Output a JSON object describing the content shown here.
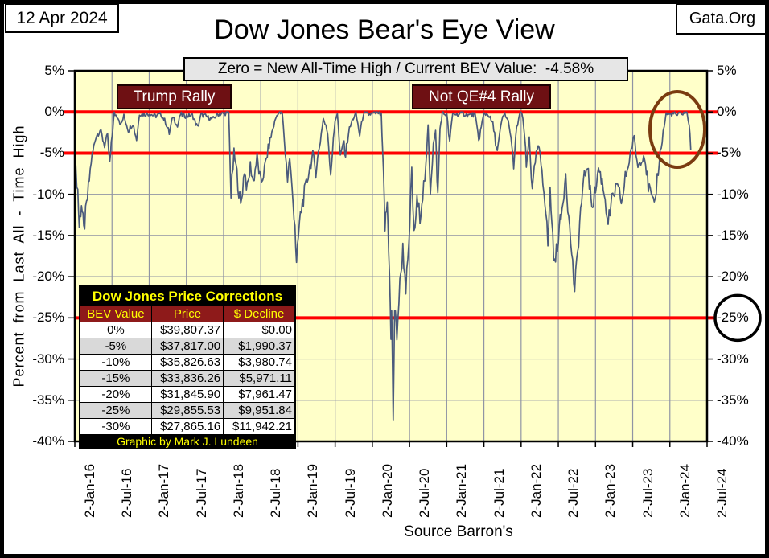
{
  "header": {
    "date_box": "12 Apr 2024",
    "brand_box": "Gata.Org",
    "title": "Dow Jones Bear's Eye View",
    "subtitle": "Zero = New All-Time High / Current BEV Value:  -4.58%"
  },
  "chart_data": {
    "type": "line",
    "title": "Dow Jones Bear's Eye View",
    "ylabel": "Percent from Last All - Time High",
    "source": "Source Barron's",
    "plot_bg": "#ffffc9",
    "grid_color": "#9094a4",
    "line_color": "#4a5a7c",
    "reference_line_color": "#ff0000",
    "current_bev": "-4.58%",
    "ylim": [
      -40,
      5
    ],
    "y_ticks": [
      5,
      0,
      -5,
      -10,
      -15,
      -20,
      -25,
      -30,
      -35,
      -40
    ],
    "y_tick_labels": [
      "5%",
      "0%",
      "-5%",
      "-10%",
      "-15%",
      "-20%",
      "-25%",
      "-30%",
      "-35%",
      "-40%"
    ],
    "x_tick_labels": [
      "2-Jan-16",
      "2-Jul-16",
      "2-Jan-17",
      "2-Jul-17",
      "2-Jan-18",
      "2-Jul-18",
      "2-Jan-19",
      "2-Jul-19",
      "2-Jan-20",
      "2-Jul-20",
      "2-Jan-21",
      "2-Jul-21",
      "2-Jan-22",
      "2-Jul-22",
      "2-Jan-23",
      "2-Jul-23",
      "2-Jan-24",
      "2-Jul-24"
    ],
    "x_span_years": 8.5,
    "reference_lines": [
      0,
      -5,
      -25
    ],
    "annotations": [
      {
        "type": "box-label",
        "text": "Trump Rally"
      },
      {
        "type": "box-label",
        "text": "Not QE#4 Rally"
      },
      {
        "type": "ellipse",
        "meaning": "current-rally-highlight",
        "color": "#7a3b10"
      },
      {
        "type": "circle",
        "meaning": "-25%-level-highlight",
        "color": "#000000"
      }
    ],
    "series": [
      {
        "name": "Dow Jones BEV (% from last all-time high)",
        "points": [
          [
            0,
            -6
          ],
          [
            0.04,
            -9.5
          ],
          [
            0.06,
            -13.9
          ],
          [
            0.09,
            -11
          ],
          [
            0.12,
            -14.5
          ],
          [
            0.17,
            -10.5
          ],
          [
            0.22,
            -6
          ],
          [
            0.28,
            -3
          ],
          [
            0.34,
            -2.2
          ],
          [
            0.4,
            -4
          ],
          [
            0.44,
            -3
          ],
          [
            0.47,
            -6.4
          ],
          [
            0.5,
            -3
          ],
          [
            0.53,
            -0.2
          ],
          [
            0.58,
            -0.6
          ],
          [
            0.62,
            -1.6
          ],
          [
            0.66,
            -0.5
          ],
          [
            0.72,
            -2.2
          ],
          [
            0.78,
            -1.4
          ],
          [
            0.83,
            -3.3
          ],
          [
            0.87,
            -0.2
          ],
          [
            0.93,
            -0.3
          ],
          [
            1,
            -0.2
          ],
          [
            1.08,
            -0.5
          ],
          [
            1.16,
            -0.3
          ],
          [
            1.22,
            -1.2
          ],
          [
            1.27,
            -2.6
          ],
          [
            1.32,
            -0.5
          ],
          [
            1.38,
            -1.8
          ],
          [
            1.42,
            -0.3
          ],
          [
            1.5,
            -0.5
          ],
          [
            1.58,
            -0.4
          ],
          [
            1.65,
            -1.9
          ],
          [
            1.7,
            -0.3
          ],
          [
            1.78,
            -0.6
          ],
          [
            1.85,
            -0.9
          ],
          [
            1.92,
            -0.3
          ],
          [
            2,
            -0.2
          ],
          [
            2.07,
            -0.05
          ],
          [
            2.1,
            -10.2
          ],
          [
            2.14,
            -5
          ],
          [
            2.18,
            -7.5
          ],
          [
            2.23,
            -11.6
          ],
          [
            2.28,
            -7
          ],
          [
            2.32,
            -9.5
          ],
          [
            2.36,
            -6.5
          ],
          [
            2.4,
            -8.5
          ],
          [
            2.45,
            -5.5
          ],
          [
            2.5,
            -8.8
          ],
          [
            2.55,
            -7
          ],
          [
            2.6,
            -4.5
          ],
          [
            2.65,
            -2.5
          ],
          [
            2.7,
            -0.8
          ],
          [
            2.73,
            -0.1
          ],
          [
            2.79,
            -0.2
          ],
          [
            2.83,
            -5
          ],
          [
            2.86,
            -8
          ],
          [
            2.89,
            -5.5
          ],
          [
            2.92,
            -9.5
          ],
          [
            2.96,
            -13.5
          ],
          [
            2.98,
            -18.8
          ],
          [
            3.02,
            -13.5
          ],
          [
            3.06,
            -11
          ],
          [
            3.1,
            -9.5
          ],
          [
            3.15,
            -7
          ],
          [
            3.2,
            -5.3
          ],
          [
            3.24,
            -7.2
          ],
          [
            3.3,
            -3.5
          ],
          [
            3.34,
            -0.8
          ],
          [
            3.4,
            -2.5
          ],
          [
            3.44,
            -7.4
          ],
          [
            3.5,
            -1
          ],
          [
            3.53,
            -0.1
          ],
          [
            3.57,
            -5.8
          ],
          [
            3.61,
            -3.5
          ],
          [
            3.64,
            -5.2
          ],
          [
            3.68,
            -2.5
          ],
          [
            3.73,
            -1
          ],
          [
            3.78,
            -0.2
          ],
          [
            3.83,
            -2.8
          ],
          [
            3.88,
            -0.2
          ],
          [
            3.95,
            -0.3
          ],
          [
            4.02,
            -0.2
          ],
          [
            4.08,
            -0.1
          ],
          [
            4.12,
            -0.4
          ],
          [
            4.15,
            -8
          ],
          [
            4.17,
            -14
          ],
          [
            4.2,
            -11
          ],
          [
            4.23,
            -19
          ],
          [
            4.25,
            -28
          ],
          [
            4.26,
            -24
          ],
          [
            4.28,
            -37.1
          ],
          [
            4.3,
            -24
          ],
          [
            4.33,
            -27
          ],
          [
            4.37,
            -21
          ],
          [
            4.41,
            -16.6
          ],
          [
            4.45,
            -21.3
          ],
          [
            4.49,
            -17
          ],
          [
            4.53,
            -6.9
          ],
          [
            4.56,
            -15.3
          ],
          [
            4.6,
            -11
          ],
          [
            4.64,
            -12.5
          ],
          [
            4.69,
            -9
          ],
          [
            4.72,
            -7
          ],
          [
            4.75,
            -1.6
          ],
          [
            4.78,
            -9.4
          ],
          [
            4.82,
            -4
          ],
          [
            4.85,
            -2.5
          ],
          [
            4.88,
            -10.3
          ],
          [
            4.91,
            -2
          ],
          [
            4.94,
            -0.2
          ],
          [
            5,
            -0.3
          ],
          [
            5.04,
            -3.7
          ],
          [
            5.08,
            -0.2
          ],
          [
            5.15,
            -0.3
          ],
          [
            5.22,
            -0.2
          ],
          [
            5.3,
            -0.4
          ],
          [
            5.38,
            -0.3
          ],
          [
            5.43,
            -3.4
          ],
          [
            5.5,
            -0.2
          ],
          [
            5.56,
            -0.3
          ],
          [
            5.62,
            -1.5
          ],
          [
            5.68,
            -4.9
          ],
          [
            5.74,
            -1
          ],
          [
            5.78,
            -0.2
          ],
          [
            5.84,
            -1.5
          ],
          [
            5.9,
            -6.6
          ],
          [
            5.94,
            -2
          ],
          [
            5.98,
            -0.3
          ],
          [
            6.01,
            -0.1
          ],
          [
            6.05,
            -3
          ],
          [
            6.07,
            -6.9
          ],
          [
            6.11,
            -2.8
          ],
          [
            6.15,
            -10
          ],
          [
            6.19,
            -6
          ],
          [
            6.23,
            -4.1
          ],
          [
            6.28,
            -7
          ],
          [
            6.32,
            -10.4
          ],
          [
            6.36,
            -16
          ],
          [
            6.39,
            -9.7
          ],
          [
            6.45,
            -18.8
          ],
          [
            6.5,
            -15
          ],
          [
            6.55,
            -12
          ],
          [
            6.6,
            -7.2
          ],
          [
            6.64,
            -13
          ],
          [
            6.68,
            -17
          ],
          [
            6.72,
            -21.9
          ],
          [
            6.76,
            -17
          ],
          [
            6.8,
            -11.9
          ],
          [
            6.85,
            -8
          ],
          [
            6.89,
            -6.3
          ],
          [
            6.93,
            -10
          ],
          [
            6.96,
            -11.1
          ],
          [
            7,
            -9.5
          ],
          [
            7.04,
            -6.8
          ],
          [
            7.09,
            -8.5
          ],
          [
            7.13,
            -10.5
          ],
          [
            7.17,
            -13.4
          ],
          [
            7.22,
            -11
          ],
          [
            7.27,
            -9.3
          ],
          [
            7.31,
            -9.8
          ],
          [
            7.36,
            -10.9
          ],
          [
            7.4,
            -8
          ],
          [
            7.44,
            -6.5
          ],
          [
            7.48,
            -4.5
          ],
          [
            7.52,
            -3.2
          ],
          [
            7.57,
            -6.7
          ],
          [
            7.62,
            -5.5
          ],
          [
            7.66,
            -5.2
          ],
          [
            7.71,
            -9
          ],
          [
            7.75,
            -10.4
          ],
          [
            7.79,
            -12
          ],
          [
            7.83,
            -8
          ],
          [
            7.87,
            -5
          ],
          [
            7.91,
            -2.5
          ],
          [
            7.95,
            -0.2
          ],
          [
            8,
            -0.3
          ],
          [
            8.05,
            -0.2
          ],
          [
            8.1,
            -0.4
          ],
          [
            8.15,
            -0.2
          ],
          [
            8.2,
            -0.1
          ],
          [
            8.23,
            -0.1
          ],
          [
            8.26,
            -1.5
          ],
          [
            8.28,
            -4.58
          ]
        ]
      }
    ]
  },
  "table": {
    "title": "Dow Jones Price Corrections",
    "columns": [
      "BEV Value",
      "Price",
      "$ Decline"
    ],
    "rows": [
      [
        "0%",
        "$39,807.37",
        "$0.00"
      ],
      [
        "-5%",
        "$37,817.00",
        "$1,990.37"
      ],
      [
        "-10%",
        "$35,826.63",
        "$3,980.74"
      ],
      [
        "-15%",
        "$33,836.26",
        "$5,971.11"
      ],
      [
        "-20%",
        "$31,845.90",
        "$7,961.47"
      ],
      [
        "-25%",
        "$29,855.53",
        "$9,951.84"
      ],
      [
        "-30%",
        "$27,865.16",
        "$11,942.21"
      ]
    ],
    "footer": "Graphic by Mark J. Lundeen"
  }
}
